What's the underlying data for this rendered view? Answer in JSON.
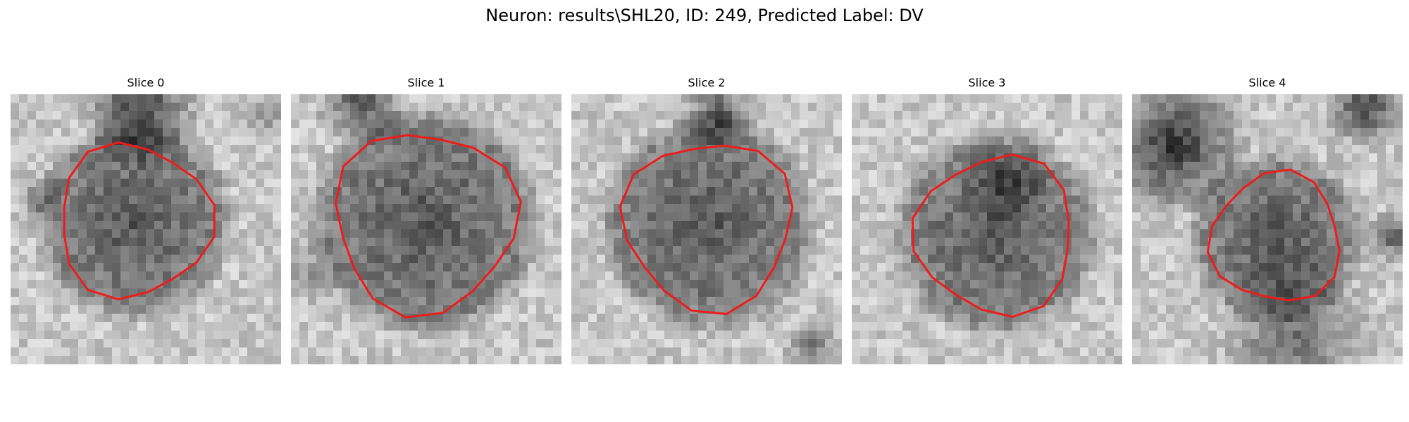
{
  "figure": {
    "title": "Neuron: results\\SHL20, ID: 249, Predicted Label: DV"
  },
  "panels": [
    {
      "title": "Slice 0"
    },
    {
      "title": "Slice 1"
    },
    {
      "title": "Slice 2"
    },
    {
      "title": "Slice 3"
    },
    {
      "title": "Slice 4"
    }
  ],
  "colors": {
    "contour": "#ee1c1c"
  },
  "image": {
    "colormap": "gray",
    "grid_cells": 32
  }
}
